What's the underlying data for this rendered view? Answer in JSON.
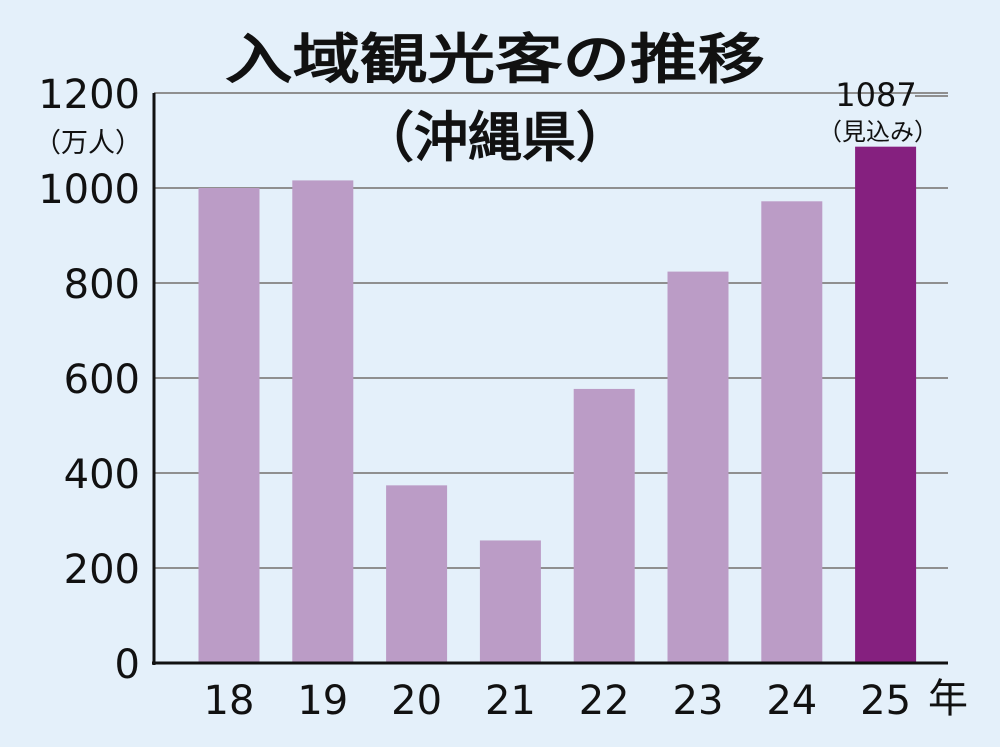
{
  "chart_data": {
    "type": "bar",
    "title": "入域観光客の推移",
    "subtitle": "（沖縄県）",
    "ylabel_unit": "（万人）",
    "x_unit": "年",
    "categories": [
      "18",
      "19",
      "20",
      "21",
      "22",
      "23",
      "24",
      "25"
    ],
    "values": [
      1000,
      1016,
      374,
      258,
      577,
      824,
      972,
      1087
    ],
    "highlight_index": 7,
    "annotation": {
      "value_text": "1087",
      "note_text": "（見込み）"
    },
    "y_ticks": [
      0,
      200,
      400,
      600,
      800,
      1000,
      1200
    ],
    "ylim": [
      0,
      1200
    ],
    "grid": true,
    "colors": {
      "background": "#e4f0fa",
      "bar": "#bb9cc6",
      "bar_highlight": "#85207f",
      "grid": "#8f8f8f",
      "axis": "#111111"
    }
  }
}
